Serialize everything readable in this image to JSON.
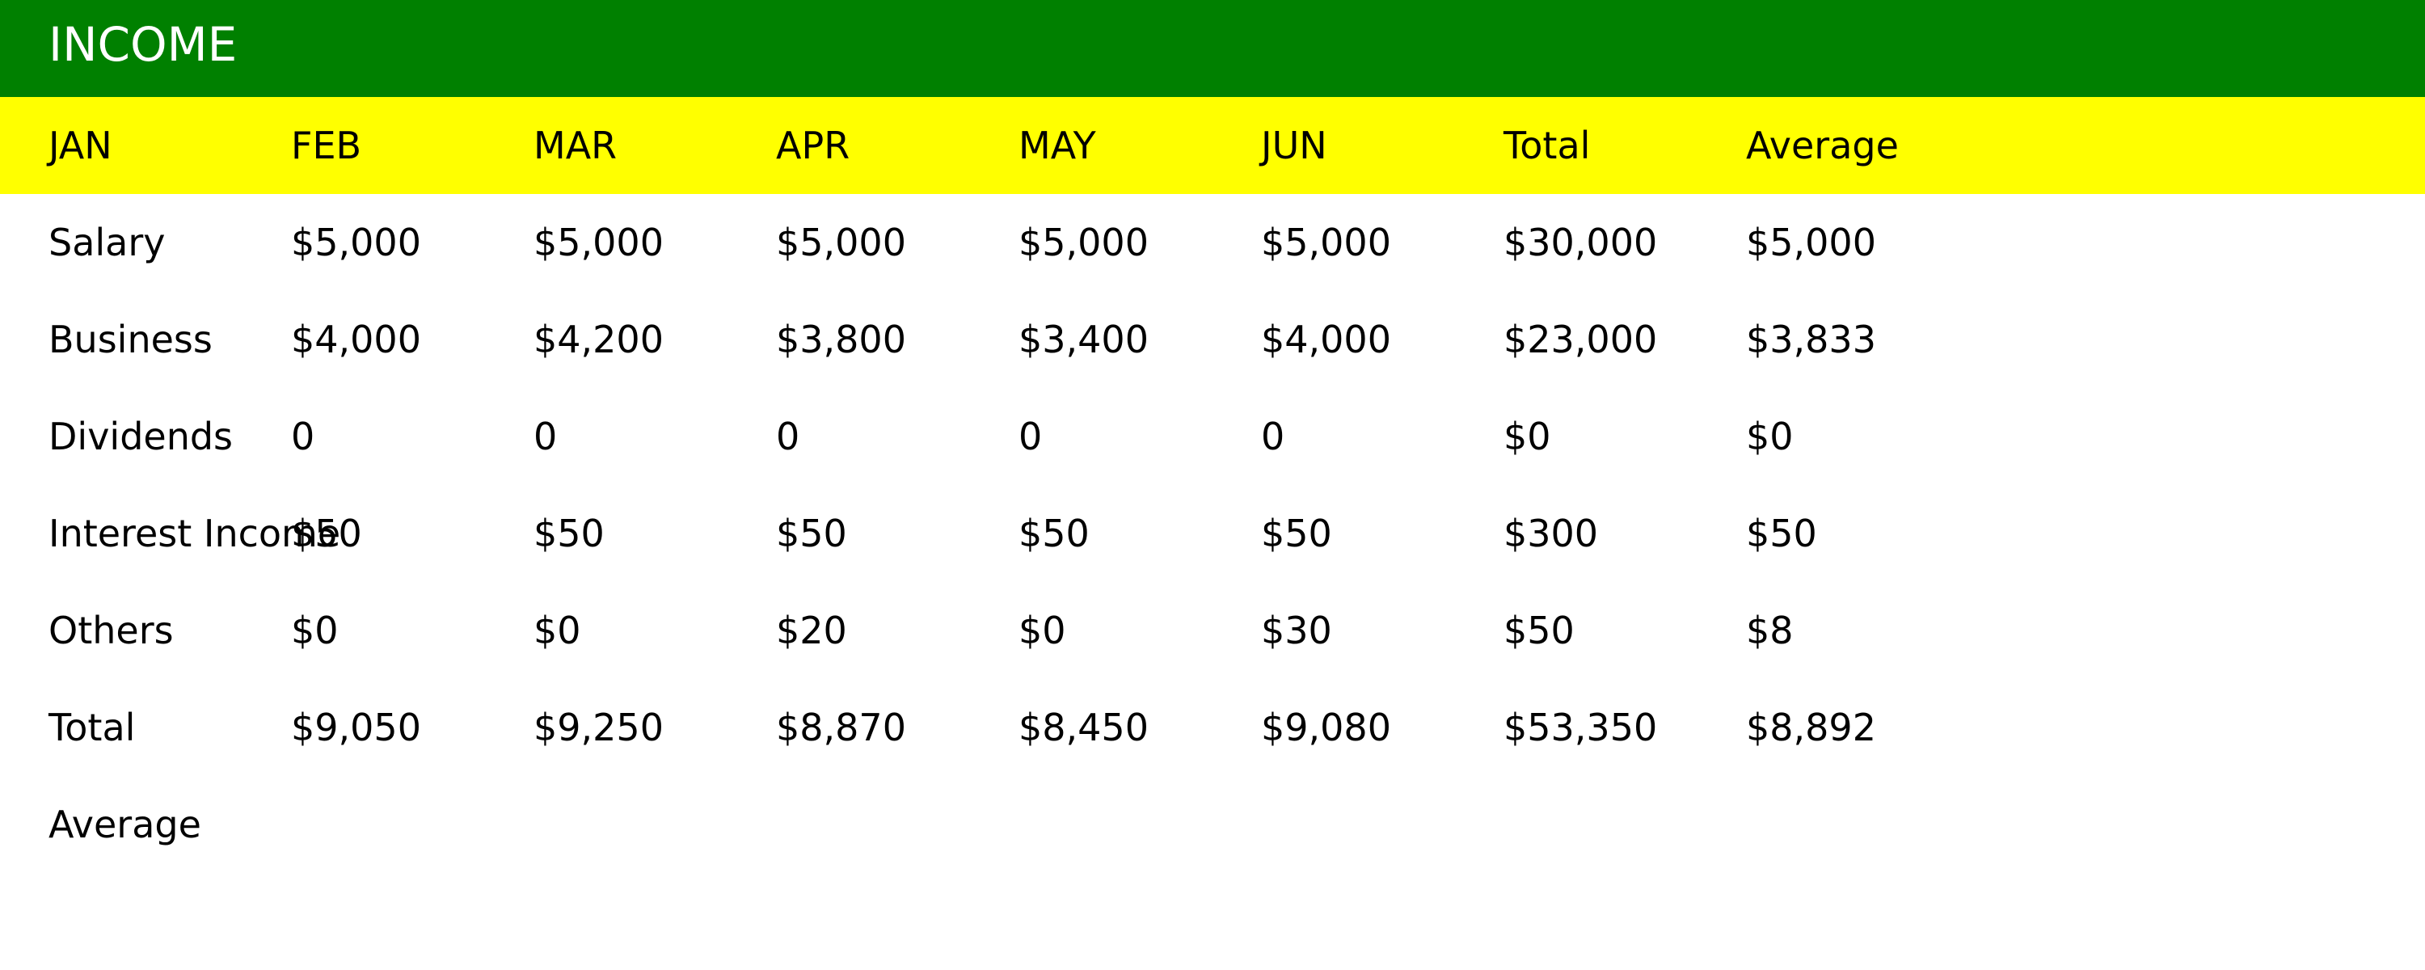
{
  "title": "INCOME",
  "colors": {
    "title_bg": "#008000",
    "title_text": "#ffffff",
    "header_bg": "#ffff00",
    "text": "#000000"
  },
  "header": [
    "JAN",
    "FEB",
    "MAR",
    "APR",
    "MAY",
    "JUN",
    "Total",
    "Average"
  ],
  "rows": [
    [
      "Salary",
      "$5,000",
      "$5,000",
      "$5,000",
      "$5,000",
      "$5,000",
      "$30,000",
      "$5,000"
    ],
    [
      "Business",
      "$4,000",
      "$4,200",
      "$3,800",
      "$3,400",
      "$4,000",
      "$23,000",
      "$3,833"
    ],
    [
      "Dividends",
      "0",
      "0",
      "0",
      "0",
      "0",
      "$0",
      "$0"
    ],
    [
      "Interest Income",
      "$50",
      "$50",
      "$50",
      "$50",
      "$50",
      "$300",
      "$50"
    ],
    [
      "Others",
      "$0",
      "$0",
      "$20",
      "$0",
      "$30",
      "$50",
      "$8"
    ],
    [
      "Total",
      "$9,050",
      "$9,250",
      "$8,870",
      "$8,450",
      "$9,080",
      "$53,350",
      "$8,892"
    ],
    [
      "Average",
      "",
      "",
      "",
      "",
      "",
      "",
      ""
    ]
  ]
}
